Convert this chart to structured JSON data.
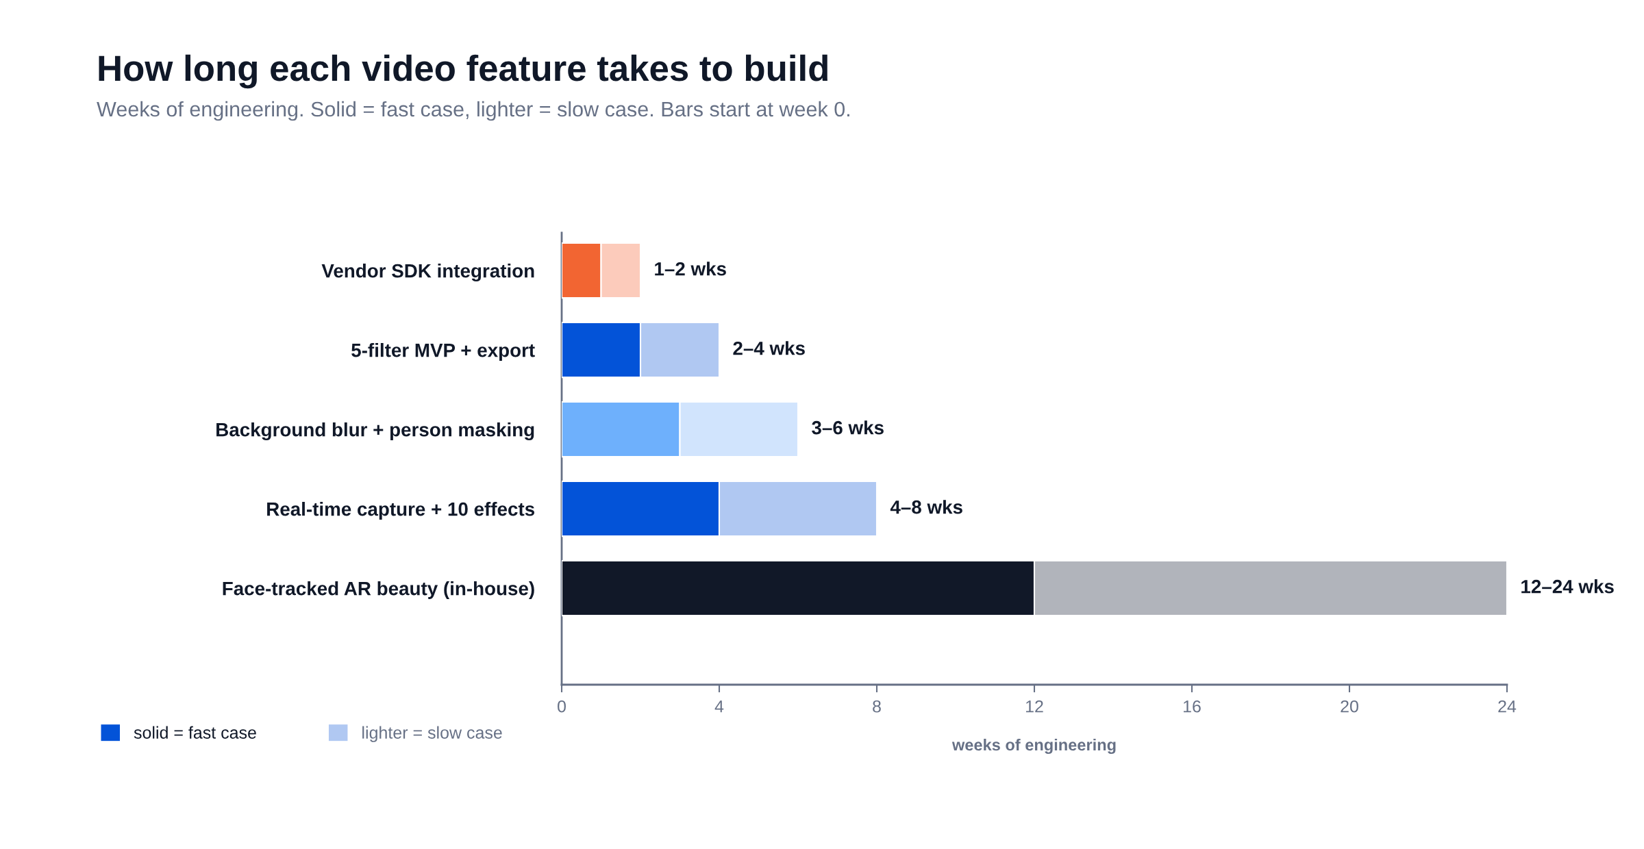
{
  "chart_data": {
    "type": "bar",
    "orientation": "horizontal",
    "stacked": true,
    "title": "How long each video feature takes to build",
    "subtitle": "Weeks of engineering. Solid = fast case, lighter = slow case. Bars start at week 0.",
    "xlabel": "weeks of engineering",
    "categories": [
      "Vendor SDK integration",
      "5-filter MVP + export",
      "Background blur + person masking",
      "Real-time capture + 10 effects",
      "Face-tracked AR beauty (in-house)"
    ],
    "series": [
      {
        "name": "solid = fast case",
        "color": "#0353d8",
        "colors": [
          "#f26532",
          "#0353d8",
          "#6eb0fc",
          "#0353d8",
          "#111828"
        ],
        "values": [
          1,
          2,
          3,
          4,
          12
        ]
      },
      {
        "name": "lighter = slow case",
        "color": "#b0c8f2",
        "colors": [
          "#fccbbb",
          "#b0c8f2",
          "#d1e4fd",
          "#b0c8f2",
          "#b1b4bb"
        ],
        "values": [
          1,
          2,
          3,
          4,
          12
        ],
        "value_labels": [
          "1–2 wks",
          "2–4 wks",
          "3–6 wks",
          "4–8 wks",
          "12–24 wks"
        ]
      }
    ],
    "xlim": [
      0,
      24
    ],
    "xticks": [
      0,
      4,
      8,
      12,
      16,
      20,
      24
    ],
    "legend": "bottom left"
  }
}
